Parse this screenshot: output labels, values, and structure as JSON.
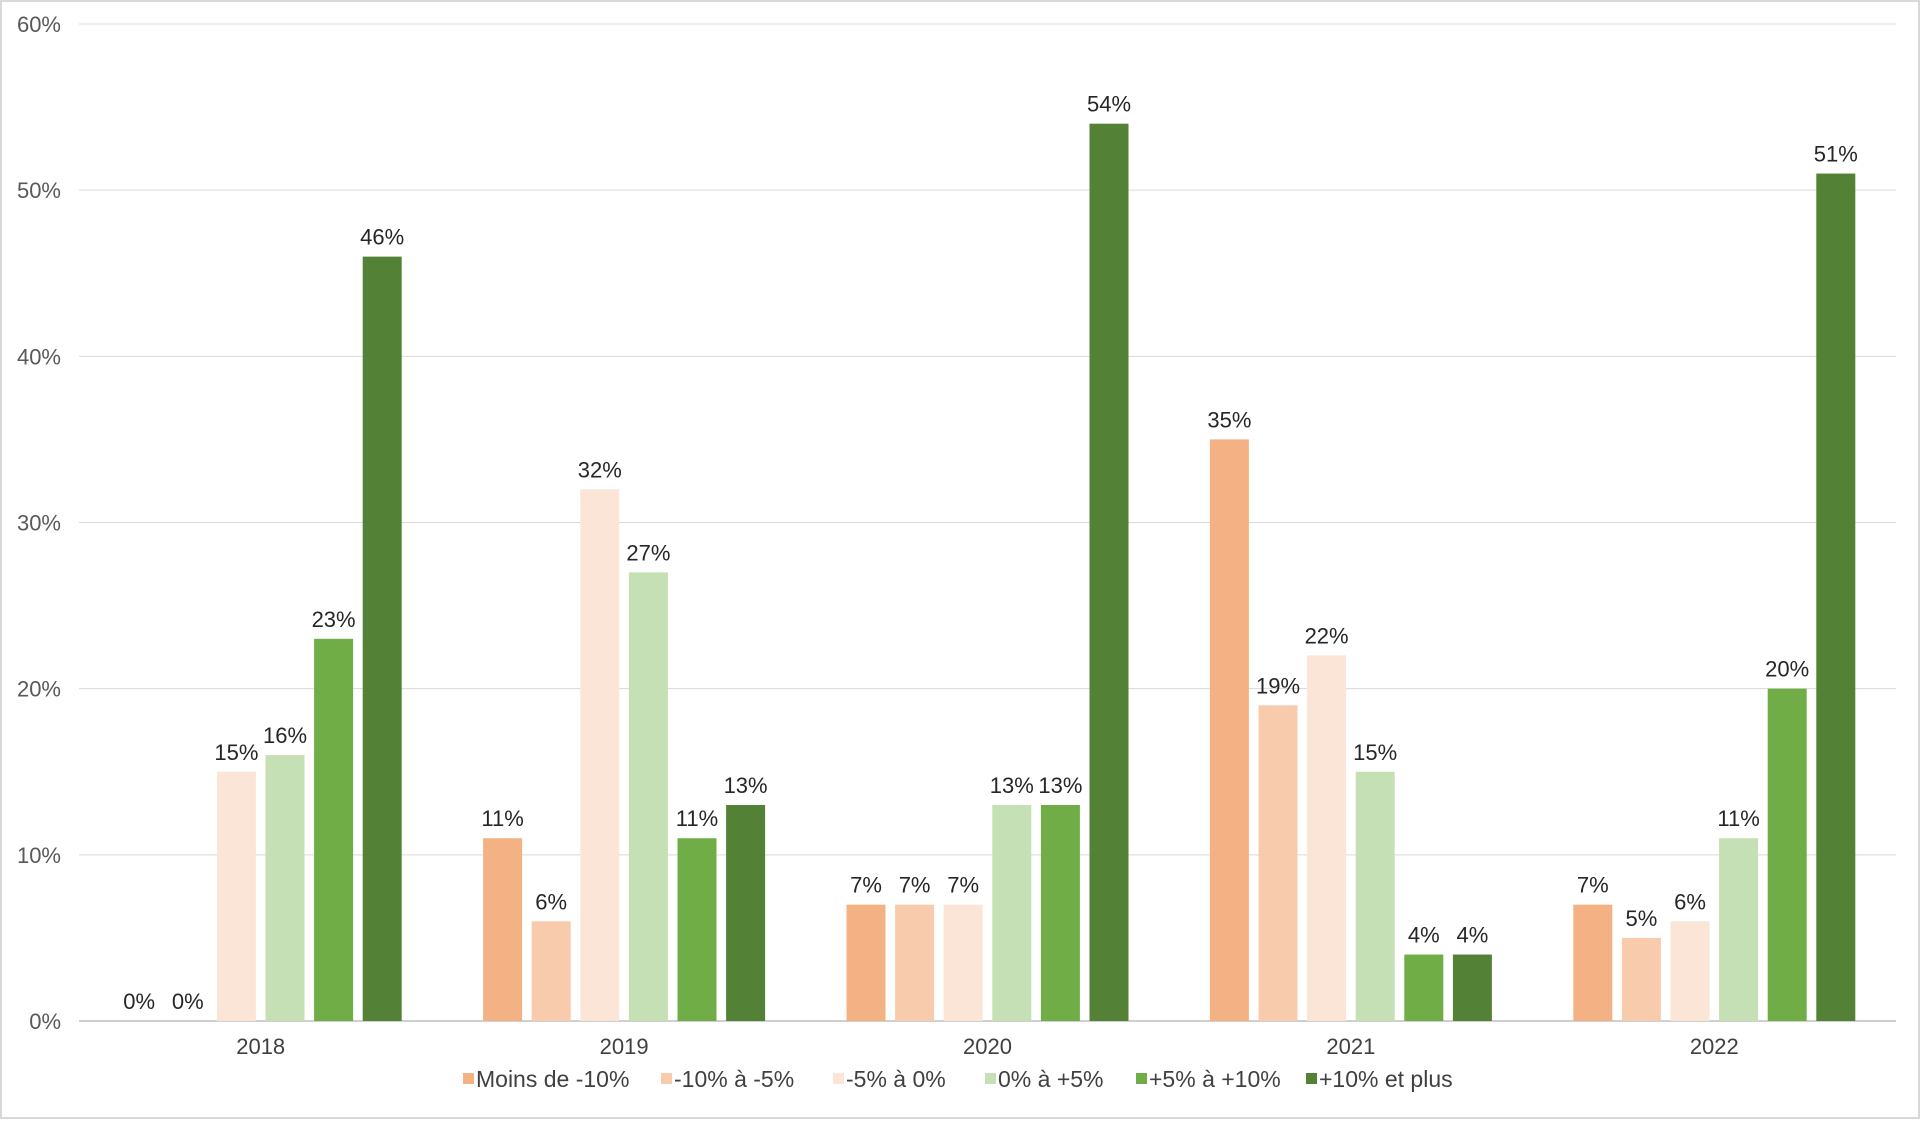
{
  "chart_data": {
    "type": "bar",
    "title": "",
    "xlabel": "",
    "ylabel": "",
    "ylim": [
      0,
      60
    ],
    "yticks": [
      "0%",
      "10%",
      "20%",
      "30%",
      "40%",
      "50%",
      "60%"
    ],
    "grid": true,
    "legend_position": "bottom",
    "categories": [
      "2018",
      "2019",
      "2020",
      "2021",
      "2022"
    ],
    "series": [
      {
        "name": "Moins de -10%",
        "color": "#f4b183",
        "values": [
          0,
          11,
          7,
          35,
          7
        ],
        "labels": [
          "0%",
          "11%",
          "7%",
          "35%",
          "7%"
        ]
      },
      {
        "name": "-10% à -5%",
        "color": "#f8cbad",
        "values": [
          0,
          6,
          7,
          19,
          5
        ],
        "labels": [
          "0%",
          "6%",
          "7%",
          "19%",
          "5%"
        ]
      },
      {
        "name": "-5% à 0%",
        "color": "#fbe5d6",
        "values": [
          15,
          32,
          7,
          22,
          6
        ],
        "labels": [
          "15%",
          "32%",
          "7%",
          "22%",
          "6%"
        ]
      },
      {
        "name": "0% à +5%",
        "color": "#c5e0b4",
        "values": [
          16,
          27,
          13,
          15,
          11
        ],
        "labels": [
          "16%",
          "27%",
          "13%",
          "15%",
          "11%"
        ]
      },
      {
        "name": "+5% à +10%",
        "color": "#70ad47",
        "values": [
          23,
          11,
          13,
          4,
          20
        ],
        "labels": [
          "23%",
          "11%",
          "13%",
          "4%",
          "20%"
        ]
      },
      {
        "name": "+10% et plus",
        "color": "#538135",
        "values": [
          46,
          13,
          54,
          4,
          51
        ],
        "labels": [
          "46%",
          "13%",
          "54%",
          "4%",
          "51%"
        ]
      }
    ]
  }
}
